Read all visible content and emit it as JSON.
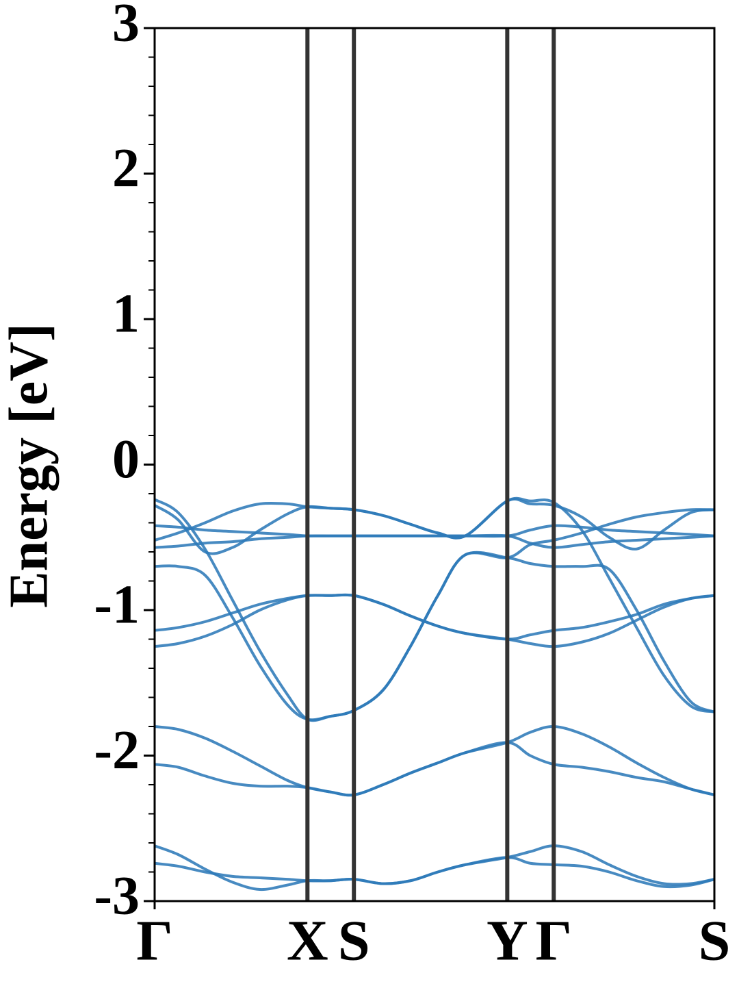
{
  "chart_data": {
    "type": "line",
    "ylabel": "Energy [eV]",
    "color": "#2e7ab8",
    "xlim": [
      0,
      1.0
    ],
    "ylim": [
      -3,
      3
    ],
    "yticks": [
      -3,
      -2,
      -1,
      0,
      1,
      2,
      3
    ],
    "yminorticks": [
      -2.8,
      -2.6,
      -2.4,
      -2.2,
      -1.8,
      -1.6,
      -1.4,
      -1.2,
      -0.8,
      -0.6,
      -0.4,
      -0.2,
      0.2,
      0.4,
      0.6,
      0.8,
      1.2,
      1.4,
      1.6,
      1.8,
      2.2,
      2.4,
      2.6,
      2.8
    ],
    "xticks": [
      {
        "value": 0,
        "label": "Γ"
      },
      {
        "value": 0.273,
        "label": "X"
      },
      {
        "value": 0.356,
        "label": "S"
      },
      {
        "value": 0.63,
        "label": "Y"
      },
      {
        "value": 0.713,
        "label": "Γ"
      },
      {
        "value": 1.0,
        "label": "S"
      }
    ],
    "x": [
      0,
      0.042,
      0.09,
      0.139,
      0.188,
      0.237,
      0.273,
      0.314,
      0.356,
      0.408,
      0.457,
      0.506,
      0.555,
      0.63,
      0.671,
      0.713,
      0.763,
      0.812,
      0.861,
      0.91,
      0.958,
      1.0
    ],
    "series": [
      {
        "values": [
          -2.62,
          -2.68,
          -2.78,
          -2.87,
          -2.92,
          -2.89,
          -2.86,
          -2.86,
          -2.85,
          -2.88,
          -2.86,
          -2.8,
          -2.75,
          -2.7,
          -2.66,
          -2.62,
          -2.66,
          -2.75,
          -2.83,
          -2.88,
          -2.88,
          -2.85
        ]
      },
      {
        "values": [
          -2.74,
          -2.76,
          -2.8,
          -2.83,
          -2.84,
          -2.85,
          -2.86,
          -2.86,
          -2.85,
          -2.88,
          -2.86,
          -2.8,
          -2.75,
          -2.7,
          -2.74,
          -2.75,
          -2.76,
          -2.8,
          -2.86,
          -2.9,
          -2.89,
          -2.85
        ]
      },
      {
        "values": [
          -1.8,
          -1.82,
          -1.88,
          -1.97,
          -2.07,
          -2.17,
          -2.22,
          -2.25,
          -2.27,
          -2.2,
          -2.12,
          -2.05,
          -1.98,
          -1.91,
          -1.84,
          -1.8,
          -1.85,
          -1.94,
          -2.05,
          -2.15,
          -2.23,
          -2.27
        ]
      },
      {
        "values": [
          -2.06,
          -2.08,
          -2.14,
          -2.19,
          -2.21,
          -2.21,
          -2.22,
          -2.25,
          -2.27,
          -2.2,
          -2.12,
          -2.05,
          -1.98,
          -1.91,
          -2.0,
          -2.06,
          -2.08,
          -2.11,
          -2.15,
          -2.18,
          -2.23,
          -2.27
        ]
      },
      {
        "values": [
          -1.14,
          -1.12,
          -1.08,
          -1.02,
          -0.96,
          -0.92,
          -0.9,
          -0.9,
          -0.9,
          -0.96,
          -1.04,
          -1.11,
          -1.16,
          -1.2,
          -1.17,
          -1.14,
          -1.12,
          -1.08,
          -1.03,
          -0.96,
          -0.92,
          -0.9
        ]
      },
      {
        "values": [
          -1.25,
          -1.23,
          -1.18,
          -1.1,
          -1.0,
          -0.93,
          -0.9,
          -0.9,
          -0.9,
          -0.96,
          -1.04,
          -1.11,
          -1.16,
          -1.2,
          -1.23,
          -1.25,
          -1.22,
          -1.16,
          -1.07,
          -0.98,
          -0.92,
          -0.9
        ]
      },
      {
        "values": [
          -0.7,
          -0.7,
          -0.76,
          -1.05,
          -1.38,
          -1.65,
          -1.75,
          -1.73,
          -1.69,
          -1.55,
          -1.25,
          -0.9,
          -0.62,
          -0.64,
          -0.68,
          -0.7,
          -0.7,
          -0.72,
          -1.0,
          -1.35,
          -1.63,
          -1.7
        ]
      },
      {
        "values": [
          -0.24,
          -0.33,
          -0.58,
          -0.93,
          -1.28,
          -1.58,
          -1.75,
          -1.73,
          -1.69,
          -1.55,
          -1.25,
          -0.9,
          -0.62,
          -0.64,
          -0.55,
          -0.52,
          -0.47,
          -0.41,
          -0.36,
          -0.33,
          -0.31,
          -0.31
        ]
      },
      {
        "values": [
          -0.52,
          -0.47,
          -0.4,
          -0.32,
          -0.27,
          -0.27,
          -0.29,
          -0.3,
          -0.31,
          -0.35,
          -0.41,
          -0.47,
          -0.49,
          -0.25,
          -0.25,
          -0.26,
          -0.45,
          -0.78,
          -1.12,
          -1.45,
          -1.66,
          -1.7
        ]
      },
      {
        "values": [
          -0.28,
          -0.38,
          -0.6,
          -0.57,
          -0.45,
          -0.34,
          -0.29,
          -0.3,
          -0.31,
          -0.35,
          -0.41,
          -0.47,
          -0.49,
          -0.25,
          -0.27,
          -0.28,
          -0.36,
          -0.5,
          -0.58,
          -0.45,
          -0.33,
          -0.31
        ]
      },
      {
        "values": [
          -0.57,
          -0.56,
          -0.54,
          -0.53,
          -0.51,
          -0.5,
          -0.49,
          -0.49,
          -0.49,
          -0.49,
          -0.49,
          -0.49,
          -0.49,
          -0.49,
          -0.45,
          -0.42,
          -0.43,
          -0.45,
          -0.46,
          -0.47,
          -0.48,
          -0.49
        ]
      },
      {
        "values": [
          -0.42,
          -0.43,
          -0.45,
          -0.46,
          -0.47,
          -0.48,
          -0.49,
          -0.49,
          -0.49,
          -0.49,
          -0.49,
          -0.49,
          -0.49,
          -0.49,
          -0.54,
          -0.57,
          -0.55,
          -0.53,
          -0.52,
          -0.51,
          -0.5,
          -0.49
        ]
      }
    ]
  }
}
